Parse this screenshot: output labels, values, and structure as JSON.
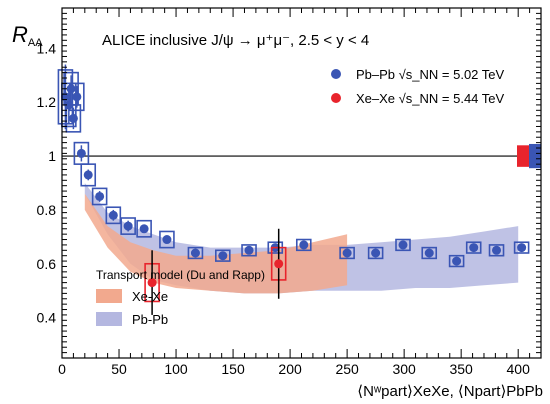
{
  "chart_data": {
    "type": "scatter",
    "title": "ALICE inclusive J/ψ → μ⁺μ⁻, 2.5 < y < 4",
    "ylabel": "R",
    "ylabel_sub": "AA",
    "xlabel": "⟨Nʷpart⟩XeXe, ⟨Npart⟩PbPb",
    "xlim": [
      0,
      420
    ],
    "ylim": [
      0.25,
      1.55
    ],
    "xticks": [
      0,
      50,
      100,
      150,
      200,
      250,
      300,
      350,
      400
    ],
    "yticks": [
      0.4,
      0.6,
      0.8,
      1.0,
      1.2,
      1.4
    ],
    "reference_line": 1.0,
    "series": [
      {
        "name": "Pb–Pb √s_NN = 5.02 TeV",
        "color": "#3a55b4",
        "x": [
          3,
          6,
          8,
          10,
          13,
          17,
          23,
          33,
          45,
          58,
          72,
          92,
          117,
          141,
          164,
          187,
          212,
          250,
          275,
          299,
          322,
          346,
          361,
          381,
          403
        ],
        "y": [
          1.22,
          1.19,
          1.25,
          1.14,
          1.22,
          1.01,
          0.93,
          0.85,
          0.78,
          0.74,
          0.73,
          0.69,
          0.64,
          0.63,
          0.65,
          0.66,
          0.67,
          0.64,
          0.64,
          0.67,
          0.64,
          0.61,
          0.66,
          0.65,
          0.66
        ],
        "sys": [
          0.1,
          0.08,
          0.06,
          0.05,
          0.05,
          0.04,
          0.04,
          0.03,
          0.03,
          0.03,
          0.03,
          0.03,
          0.02,
          0.02,
          0.02,
          0.02,
          0.02,
          0.02,
          0.02,
          0.02,
          0.02,
          0.02,
          0.02,
          0.02,
          0.02
        ],
        "stat": [
          0.12,
          0.07,
          0.05,
          0.04,
          0.04,
          0.03,
          0.02,
          0.02,
          0.02,
          0.02,
          0.01,
          0.01,
          0.01,
          0.01,
          0.01,
          0.01,
          0.01,
          0.01,
          0.01,
          0.01,
          0.01,
          0.01,
          0.01,
          0.01,
          0.01
        ]
      },
      {
        "name": "Xe–Xe √s_NN = 5.44 TeV",
        "color": "#e8242c",
        "x": [
          79,
          190
        ],
        "y": [
          0.53,
          0.6
        ],
        "sys": [
          0.07,
          0.06
        ],
        "stat": [
          0.12,
          0.13
        ]
      }
    ],
    "bands": [
      {
        "name": "Pb-Pb",
        "color": "#b4b7e0",
        "x": [
          20,
          40,
          60,
          80,
          100,
          130,
          160,
          190,
          220,
          250,
          280,
          310,
          340,
          370,
          400
        ],
        "upper": [
          0.9,
          0.79,
          0.74,
          0.71,
          0.68,
          0.66,
          0.66,
          0.66,
          0.67,
          0.67,
          0.68,
          0.69,
          0.7,
          0.72,
          0.74
        ],
        "lower": [
          0.86,
          0.71,
          0.6,
          0.54,
          0.52,
          0.5,
          0.49,
          0.49,
          0.5,
          0.5,
          0.5,
          0.51,
          0.51,
          0.52,
          0.53
        ]
      },
      {
        "name": "Xe-Xe",
        "color": "#f2a98e",
        "x": [
          20,
          40,
          60,
          80,
          100,
          130,
          160,
          190,
          220,
          250
        ],
        "upper": [
          0.86,
          0.74,
          0.68,
          0.65,
          0.63,
          0.63,
          0.64,
          0.65,
          0.68,
          0.71
        ],
        "lower": [
          0.8,
          0.66,
          0.57,
          0.53,
          0.51,
          0.5,
          0.49,
          0.49,
          0.5,
          0.52
        ]
      }
    ],
    "legend_model_title": "Transport model (Du and Rapp)",
    "global_uncertainty": [
      {
        "color": "#e8242c",
        "half_width": 0.04
      },
      {
        "color": "#3a55b4",
        "half_width": 0.045
      }
    ]
  }
}
